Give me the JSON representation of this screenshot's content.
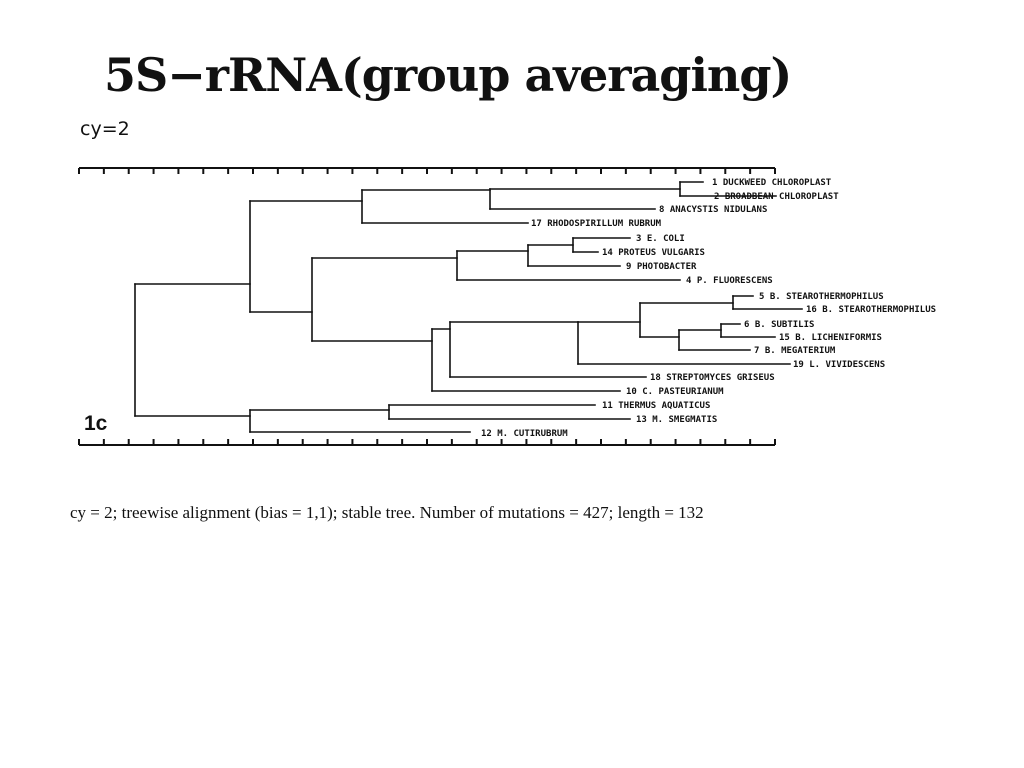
{
  "slide": {
    "title": "5S−rRNA(group averaging)",
    "cy_label": "cy=2",
    "caption": "cy = 2; treewise alignment (bias = 1,1); stable tree. Number of mutations = 427; length = 132"
  },
  "figure": {
    "panel_label": "1c",
    "leaves": [
      "1 DUCKWEED CHLOROPLAST",
      "2 BROADBEAN CHLOROPLAST",
      "8 ANACYSTIS NIDULANS",
      "17 RHODOSPIRILLUM RUBRUM",
      "3 E. COLI",
      "14 PROTEUS VULGARIS",
      "9 PHOTOBACTER",
      "4 P. FLUORESCENS",
      "5 B. STEAROTHERMOPHILUS",
      "16 B. STEAROTHERMOPHILUS",
      "6 B. SUBTILIS",
      "15 B. LICHENIFORMIS",
      "7 B. MEGATERIUM",
      "19 L. VIVIDESCENS",
      "18 STREPTOMYCES GRISEUS",
      "10 C. PASTEURIANUM",
      "11 THERMUS AQUATICUS",
      "13 M. SMEGMATIS",
      "12 M. CUTIRUBRUM"
    ]
  }
}
